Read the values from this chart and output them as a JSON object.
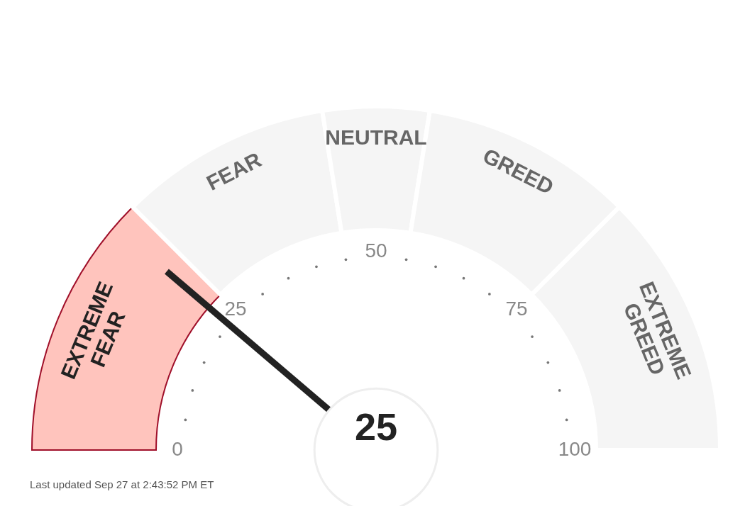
{
  "chart_data": {
    "type": "donut",
    "categories": [
      "EXTREME FEAR",
      "FEAR",
      "NEUTRAL",
      "GREED",
      "EXTREME GREED"
    ],
    "values": [
      25,
      20,
      10,
      20,
      25
    ],
    "colors": [
      "#ffc4bd",
      "#f5f5f5",
      "#f5f5f5",
      "#f5f5f5",
      "#f5f5f5"
    ],
    "needle": "EXTREME FEAR",
    "annotations": [
      "25",
      "Last updated Sep 27 at 2:43:52 PM ET",
      "0",
      "25",
      "50",
      "75",
      "100"
    ]
  }
}
